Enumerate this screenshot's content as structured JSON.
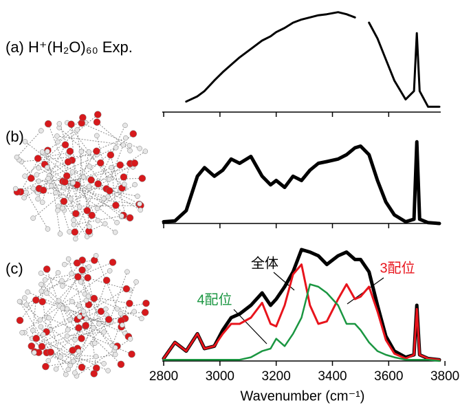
{
  "chart_data": [
    {
      "type": "line",
      "title": "(a) H⁺(H₂O)₆₀ Exp.",
      "color": "#000000",
      "x": [
        2800,
        2840,
        2880,
        2920,
        2945,
        2980,
        3010,
        3040,
        3070,
        3110,
        3150,
        3180,
        3200,
        3230,
        3260,
        3290,
        3320,
        3350,
        3380,
        3420,
        3450,
        3480,
        3500,
        3530,
        3560,
        3590,
        3620,
        3660,
        3690,
        3700,
        3710,
        3740,
        3780
      ],
      "values": [
        null,
        null,
        0.1,
        0.15,
        0.2,
        0.3,
        0.38,
        0.45,
        0.52,
        0.6,
        0.68,
        0.72,
        0.76,
        0.8,
        0.85,
        0.88,
        0.9,
        0.92,
        0.93,
        0.95,
        0.93,
        0.9,
        null,
        0.85,
        0.7,
        0.5,
        0.3,
        0.12,
        0.2,
        0.75,
        0.2,
        0.05,
        0.05
      ],
      "xlim": [
        2795,
        3785
      ],
      "ylim": [
        0,
        1
      ],
      "xticks": [
        2800,
        3000,
        3200,
        3400,
        3600
      ]
    },
    {
      "type": "line",
      "title": "(b)",
      "color": "#000000",
      "x": [
        2800,
        2840,
        2880,
        2920,
        2945,
        2980,
        3010,
        3040,
        3070,
        3110,
        3150,
        3180,
        3200,
        3230,
        3260,
        3290,
        3320,
        3350,
        3380,
        3420,
        3450,
        3480,
        3500,
        3530,
        3560,
        3590,
        3620,
        3660,
        3690,
        3700,
        3710,
        3740,
        3780
      ],
      "values": [
        0.02,
        0.03,
        0.15,
        0.55,
        0.65,
        0.55,
        0.62,
        0.75,
        0.7,
        0.78,
        0.55,
        0.45,
        0.5,
        0.42,
        0.55,
        0.5,
        0.62,
        0.7,
        0.72,
        0.75,
        0.8,
        0.88,
        0.9,
        0.8,
        0.5,
        0.25,
        0.1,
        0.02,
        0.05,
        0.95,
        0.05,
        0.01,
        0
      ],
      "xlim": [
        2795,
        3785
      ],
      "ylim": [
        0,
        1
      ],
      "xticks": [
        2800,
        3000,
        3200,
        3400,
        3600
      ]
    },
    {
      "type": "line",
      "title": "(c)",
      "xlabel": "Wavenumber (cm⁻¹)",
      "x": [
        2800,
        2840,
        2880,
        2920,
        2945,
        2980,
        3010,
        3040,
        3070,
        3110,
        3150,
        3180,
        3200,
        3230,
        3260,
        3290,
        3320,
        3350,
        3380,
        3420,
        3450,
        3480,
        3500,
        3530,
        3560,
        3590,
        3620,
        3660,
        3690,
        3700,
        3710,
        3740,
        3780
      ],
      "series": [
        {
          "name": "全体",
          "color": "#000000",
          "values": [
            0.02,
            0.15,
            0.08,
            0.22,
            0.1,
            0.12,
            0.25,
            0.35,
            0.38,
            0.45,
            0.55,
            0.45,
            0.5,
            0.6,
            0.72,
            0.9,
            0.88,
            0.85,
            0.78,
            0.85,
            0.88,
            0.82,
            0.82,
            0.72,
            0.45,
            0.2,
            0.08,
            0.03,
            0.05,
            0.45,
            0.05,
            0.02,
            0.01
          ]
        },
        {
          "name": "3配位",
          "color": "#e8141c",
          "values": [
            0.02,
            0.15,
            0.08,
            0.22,
            0.1,
            0.12,
            0.22,
            0.3,
            0.3,
            0.35,
            0.47,
            0.3,
            0.28,
            0.45,
            0.7,
            0.78,
            0.45,
            0.3,
            0.32,
            0.5,
            0.62,
            0.5,
            0.52,
            0.6,
            0.4,
            0.17,
            0.06,
            0.02,
            0.05,
            0.42,
            0.05,
            0.02,
            0.01
          ]
        },
        {
          "name": "4配位",
          "color": "#1a9641",
          "values": [
            0.01,
            0.01,
            0.01,
            0.01,
            0.01,
            0.01,
            0.01,
            0.01,
            0.01,
            0.03,
            0.08,
            0.1,
            0.18,
            0.12,
            0.22,
            0.35,
            0.62,
            0.6,
            0.55,
            0.45,
            0.3,
            0.3,
            0.25,
            0.15,
            0.08,
            0.05,
            0.03,
            0.01,
            0.01,
            0.01,
            0.01,
            0.01,
            0
          ]
        }
      ],
      "xlim": [
        2795,
        3785
      ],
      "ylim": [
        0,
        1
      ],
      "xticks": [
        2800,
        3000,
        3200,
        3400,
        3600,
        3800
      ]
    }
  ]
}
